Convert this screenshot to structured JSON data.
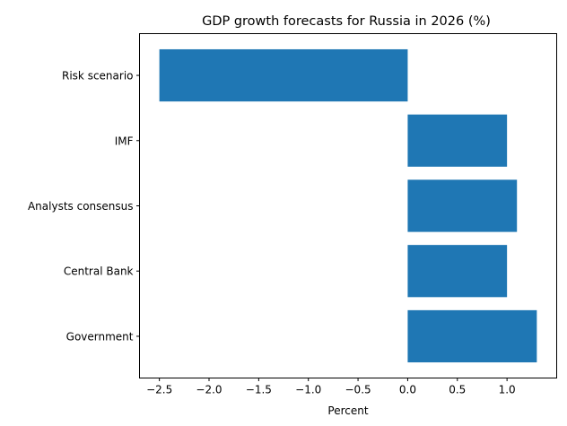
{
  "chart_data": {
    "type": "bar",
    "orientation": "horizontal",
    "title": "GDP growth forecasts for Russia in 2026 (%)",
    "xlabel": "Percent",
    "ylabel": "",
    "categories": [
      "Government",
      "Central Bank",
      "Analysts consensus",
      "IMF",
      "Risk scenario"
    ],
    "values": [
      1.3,
      1.0,
      1.1,
      1.0,
      -2.5
    ],
    "xlim": [
      -2.7,
      1.5
    ],
    "xticks": [
      -2.5,
      -2.0,
      -1.5,
      -1.0,
      -0.5,
      0.0,
      0.5,
      1.0
    ],
    "xtick_labels": [
      "−2.5",
      "−2.0",
      "−1.5",
      "−1.0",
      "−0.5",
      "0.0",
      "0.5",
      "1.0"
    ],
    "bar_color": "#1f77b4",
    "grid": false,
    "legend": "none"
  }
}
